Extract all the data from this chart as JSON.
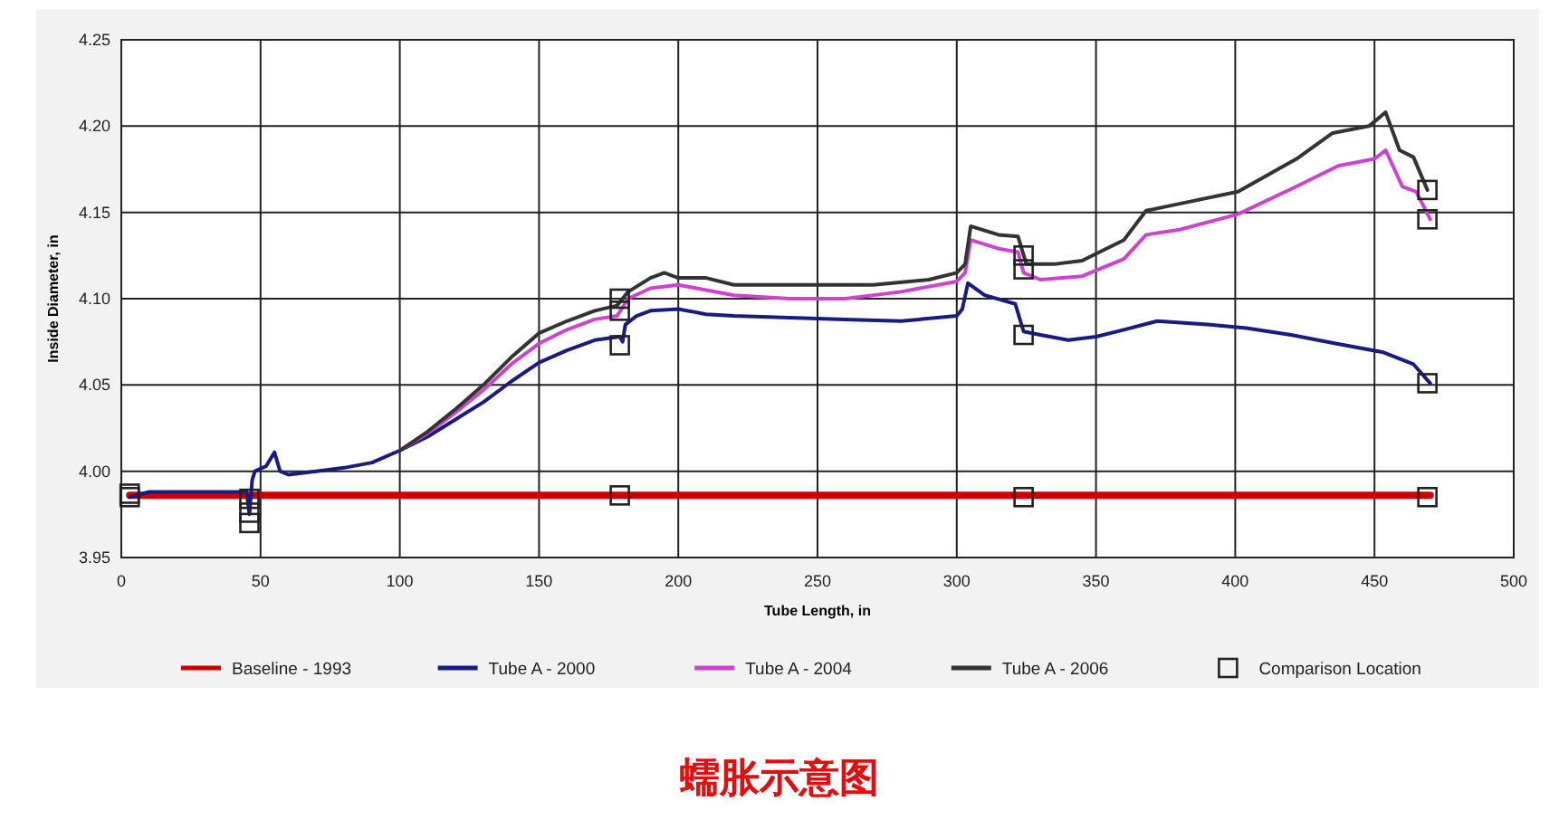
{
  "chart_data": {
    "type": "line",
    "title": "蠕胀示意图",
    "xlabel": "Tube Length, in",
    "ylabel": "Inside Diameter, in",
    "xlim": [
      0,
      500
    ],
    "xticks": [
      0,
      50,
      100,
      150,
      200,
      250,
      300,
      350,
      400,
      450,
      500
    ],
    "ylim": [
      3.95,
      4.25
    ],
    "yticks": [
      {
        "value": 3.95,
        "label": "3.95"
      },
      {
        "value": 4,
        "label": "4.00"
      },
      {
        "value": 4.05,
        "label": "4.05"
      },
      {
        "value": 4.1,
        "label": "4.10"
      },
      {
        "value": 4.15,
        "label": "4.15"
      },
      {
        "value": 4.2,
        "label": "4.20"
      },
      {
        "value": 4.25,
        "label": "4.25"
      }
    ],
    "grid": true,
    "legend": "bottom",
    "marker": "none",
    "line_style": "solid",
    "series": [
      {
        "name": "Baseline - 1993",
        "color": "#cc0000",
        "x": [
          3,
          470
        ],
        "values": [
          3.986,
          3.986
        ]
      },
      {
        "name": "Tube A - 2000",
        "color": "#1a1a80",
        "x": [
          3,
          10,
          45,
          46,
          47,
          48,
          52,
          55,
          57,
          60,
          70,
          80,
          90,
          100,
          110,
          120,
          130,
          140,
          150,
          160,
          170,
          179,
          180,
          181,
          185,
          190,
          200,
          210,
          220,
          240,
          260,
          280,
          300,
          302,
          304,
          310,
          321,
          324,
          330,
          340,
          350,
          360,
          372,
          390,
          404,
          420,
          436,
          453,
          464,
          470
        ],
        "values": [
          3.985,
          3.988,
          3.988,
          3.975,
          3.995,
          4.0,
          4.003,
          4.011,
          4.0,
          3.998,
          4.0,
          4.002,
          4.005,
          4.012,
          4.02,
          4.03,
          4.04,
          4.052,
          4.063,
          4.07,
          4.076,
          4.078,
          4.075,
          4.085,
          4.09,
          4.093,
          4.094,
          4.091,
          4.09,
          4.089,
          4.088,
          4.087,
          4.09,
          4.094,
          4.109,
          4.102,
          4.097,
          4.081,
          4.079,
          4.076,
          4.078,
          4.082,
          4.087,
          4.085,
          4.083,
          4.079,
          4.074,
          4.069,
          4.062,
          4.051
        ]
      },
      {
        "name": "Tube A - 2004",
        "color": "#cc44cc",
        "x": [
          100,
          110,
          120,
          130,
          140,
          150,
          160,
          170,
          178,
          182,
          190,
          200,
          210,
          220,
          240,
          250,
          260,
          280,
          300,
          303,
          305,
          315,
          322,
          324,
          330,
          345,
          360,
          368,
          380,
          401,
          422,
          437,
          450,
          454,
          460,
          465,
          470
        ],
        "values": [
          4.012,
          4.022,
          4.034,
          4.047,
          4.062,
          4.074,
          4.082,
          4.088,
          4.09,
          4.1,
          4.106,
          4.108,
          4.105,
          4.102,
          4.1,
          4.1,
          4.1,
          4.104,
          4.11,
          4.115,
          4.134,
          4.129,
          4.127,
          4.115,
          4.111,
          4.113,
          4.123,
          4.137,
          4.14,
          4.149,
          4.165,
          4.177,
          4.181,
          4.186,
          4.165,
          4.162,
          4.146
        ]
      },
      {
        "name": "Tube A - 2006",
        "color": "#333333",
        "x": [
          100,
          110,
          120,
          130,
          140,
          150,
          160,
          170,
          178,
          182,
          190,
          195,
          200,
          210,
          220,
          250,
          270,
          290,
          300,
          303,
          305,
          315,
          322,
          325,
          335,
          345,
          360,
          368,
          380,
          401,
          422,
          435,
          448,
          454,
          459,
          464,
          469
        ],
        "values": [
          4.012,
          4.023,
          4.036,
          4.05,
          4.066,
          4.08,
          4.087,
          4.093,
          4.096,
          4.104,
          4.112,
          4.115,
          4.112,
          4.112,
          4.108,
          4.108,
          4.108,
          4.111,
          4.115,
          4.12,
          4.142,
          4.137,
          4.136,
          4.12,
          4.12,
          4.122,
          4.134,
          4.151,
          4.155,
          4.162,
          4.181,
          4.196,
          4.2,
          4.208,
          4.186,
          4.182,
          4.163
        ]
      },
      {
        "name": "Comparison Location",
        "type": "scatter",
        "marker": "square",
        "color": "#222222",
        "x": [
          3,
          3,
          46,
          46,
          46,
          179,
          179,
          179,
          179,
          324,
          324,
          324,
          324,
          469,
          469,
          469,
          469
        ],
        "values": [
          3.985,
          3.987,
          3.984,
          3.976,
          3.97,
          4.1,
          4.093,
          4.073,
          3.986,
          4.125,
          4.117,
          4.079,
          3.985,
          4.163,
          4.146,
          4.051,
          3.985
        ]
      }
    ]
  }
}
